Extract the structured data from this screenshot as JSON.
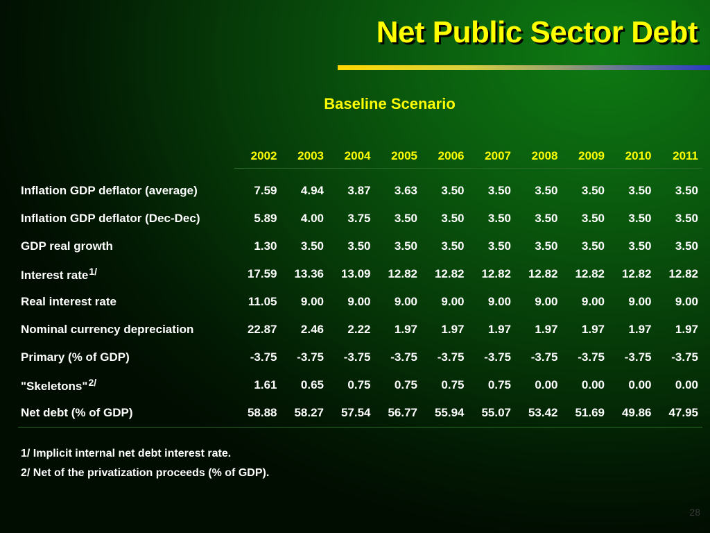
{
  "title": "Net Public Sector Debt",
  "subtitle": "Baseline Scenario",
  "years": [
    "2002",
    "2003",
    "2004",
    "2005",
    "2006",
    "2007",
    "2008",
    "2009",
    "2010",
    "2011"
  ],
  "rows": [
    {
      "label": "Inflation GDP deflator (average)",
      "sup": "",
      "values": [
        "7.59",
        "4.94",
        "3.87",
        "3.63",
        "3.50",
        "3.50",
        "3.50",
        "3.50",
        "3.50",
        "3.50"
      ]
    },
    {
      "label": "Inflation GDP deflator (Dec-Dec)",
      "sup": "",
      "values": [
        "5.89",
        "4.00",
        "3.75",
        "3.50",
        "3.50",
        "3.50",
        "3.50",
        "3.50",
        "3.50",
        "3.50"
      ]
    },
    {
      "label": "GDP real growth",
      "sup": "",
      "values": [
        "1.30",
        "3.50",
        "3.50",
        "3.50",
        "3.50",
        "3.50",
        "3.50",
        "3.50",
        "3.50",
        "3.50"
      ]
    },
    {
      "label": "Interest rate",
      "sup": "1/",
      "values": [
        "17.59",
        "13.36",
        "13.09",
        "12.82",
        "12.82",
        "12.82",
        "12.82",
        "12.82",
        "12.82",
        "12.82"
      ]
    },
    {
      "label": "Real interest rate",
      "sup": "",
      "values": [
        "11.05",
        "9.00",
        "9.00",
        "9.00",
        "9.00",
        "9.00",
        "9.00",
        "9.00",
        "9.00",
        "9.00"
      ]
    },
    {
      "label": "Nominal currency depreciation",
      "sup": "",
      "values": [
        "22.87",
        "2.46",
        "2.22",
        "1.97",
        "1.97",
        "1.97",
        "1.97",
        "1.97",
        "1.97",
        "1.97"
      ]
    },
    {
      "label": "Primary (% of GDP)",
      "sup": "",
      "values": [
        "-3.75",
        "-3.75",
        "-3.75",
        "-3.75",
        "-3.75",
        "-3.75",
        "-3.75",
        "-3.75",
        "-3.75",
        "-3.75"
      ]
    },
    {
      "label": "\"Skeletons\"",
      "sup": "2/",
      "values": [
        "1.61",
        "0.65",
        "0.75",
        "0.75",
        "0.75",
        "0.75",
        "0.00",
        "0.00",
        "0.00",
        "0.00"
      ]
    },
    {
      "label": "Net debt (% of GDP)",
      "sup": "",
      "values": [
        "58.88",
        "58.27",
        "57.54",
        "56.77",
        "55.94",
        "55.07",
        "53.42",
        "51.69",
        "49.86",
        "47.95"
      ]
    }
  ],
  "notes": [
    "1/ Implicit internal net debt interest rate.",
    "2/ Net of the privatization proceeds (% of GDP)."
  ],
  "page_number": "28"
}
